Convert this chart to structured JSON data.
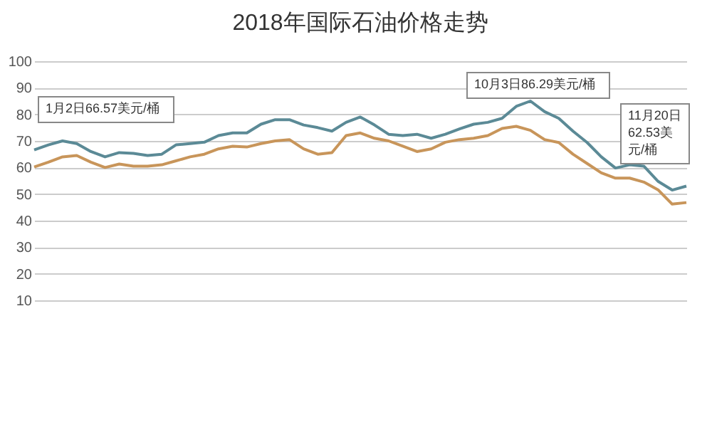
{
  "chart_data": {
    "type": "line",
    "title": "2018年国际石油价格走势",
    "categories": [
      null,
      null,
      null,
      null,
      null,
      null,
      null,
      null,
      null,
      null,
      null,
      null,
      null,
      null,
      null,
      null,
      null,
      null,
      null,
      null,
      null,
      null,
      null,
      null,
      null,
      null,
      null,
      null,
      null,
      null,
      null,
      null,
      null,
      null,
      null,
      null,
      null,
      null,
      null,
      null,
      null,
      null,
      null,
      null,
      null,
      null,
      null
    ],
    "series": [
      {
        "color": "#5b8a96",
        "values": [
          66.6,
          68.5,
          70,
          69,
          66,
          64,
          65.6,
          65.3,
          64.5,
          65,
          68.5,
          69,
          69.5,
          72,
          73,
          73,
          76.3,
          78,
          78,
          76,
          75,
          73.7,
          77,
          79,
          76,
          72.5,
          72,
          72.5,
          71,
          72.5,
          74.5,
          76.3,
          77,
          78.5,
          83,
          85,
          81,
          78.5,
          73.7,
          69.4,
          64,
          59.8,
          61,
          60.5,
          54.8,
          51.5,
          53
        ]
      },
      {
        "color": "#c8955a",
        "values": [
          60.2,
          62,
          64,
          64.5,
          62,
          60,
          61.3,
          60.5,
          60.5,
          61,
          62.5,
          64,
          65,
          67,
          68,
          67.7,
          69,
          70,
          70.5,
          67,
          65,
          65.6,
          72,
          73,
          71,
          70,
          68,
          66,
          67,
          69.5,
          70.5,
          71,
          72,
          74.7,
          75.5,
          74,
          70.5,
          69.4,
          65,
          61.5,
          58,
          56,
          56,
          54.5,
          51.6,
          46.2,
          46.8
        ]
      }
    ],
    "annotations": [
      "1月2日66.57美元/桶",
      "10月3日86.29美元/桶",
      "11月20日62.53美元/桶"
    ],
    "ylim": [
      10,
      100
    ],
    "yticks": [
      10,
      20,
      30,
      40,
      50,
      60,
      70,
      80,
      90,
      100
    ],
    "grid": "y",
    "tick_labels": "y"
  }
}
